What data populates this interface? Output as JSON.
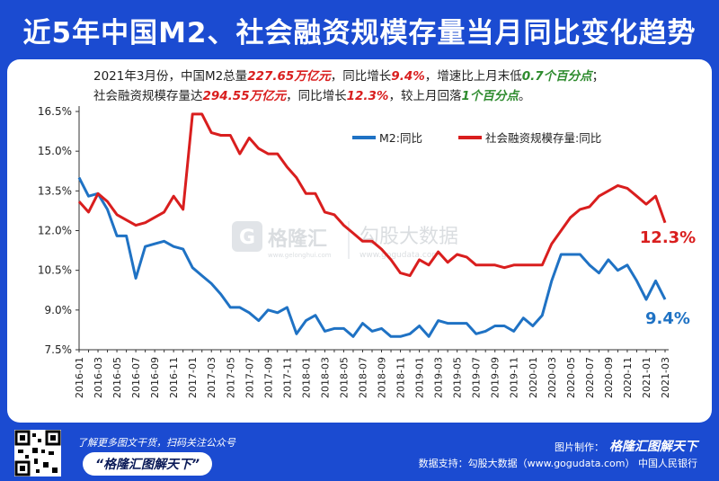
{
  "title": "近5年中国M2、社会融资规模存量当月同比变化趋势",
  "summary": {
    "line1_a": "2021年3月份，中国M2总量",
    "line1_b": "227.65万亿元",
    "line1_c": "，同比增长",
    "line1_d": "9.4%",
    "line1_e": "，增速比上月末低",
    "line1_f": "0.7个百分点",
    "line1_g": "；",
    "line2_a": "社会融资规模存量达",
    "line2_b": "294.55万亿元",
    "line2_c": "，同比增长",
    "line2_d": "12.3%",
    "line2_e": "，较上月回落",
    "line2_f": "1个百分点",
    "line2_g": "。"
  },
  "watermark": {
    "brand": "格隆汇",
    "brand_url": "www.gelonghui.com",
    "brand2": "勾股大数据",
    "brand2_url": "www.gogudata.com"
  },
  "footer": {
    "note": "了解更多图文干货，扫码关注公众号",
    "brand": "“格隆汇图解天下”",
    "maker_label": "图片制作：",
    "maker": "格隆汇图解天下",
    "source": "数据支持：勾股大数据（www.gogudata.com） 中国人民银行"
  },
  "colors": {
    "background": "#1b4bd1",
    "m2": "#1f72c4",
    "social": "#d91e1e"
  },
  "chart_data": {
    "type": "line",
    "ylim": [
      7.5,
      16.5
    ],
    "yticks": [
      "16.5%",
      "15.0%",
      "13.5%",
      "12.0%",
      "10.5%",
      "9.0%",
      "7.5%"
    ],
    "ytick_values": [
      16.5,
      15.0,
      13.5,
      12.0,
      10.5,
      9.0,
      7.5
    ],
    "grid": false,
    "legend_position": "top-right",
    "x": [
      "2016-01",
      "2016-02",
      "2016-03",
      "2016-04",
      "2016-05",
      "2016-06",
      "2016-07",
      "2016-08",
      "2016-09",
      "2016-10",
      "2016-11",
      "2016-12",
      "2017-01",
      "2017-02",
      "2017-03",
      "2017-04",
      "2017-05",
      "2017-06",
      "2017-07",
      "2017-08",
      "2017-09",
      "2017-10",
      "2017-11",
      "2017-12",
      "2018-01",
      "2018-02",
      "2018-03",
      "2018-04",
      "2018-05",
      "2018-06",
      "2018-07",
      "2018-08",
      "2018-09",
      "2018-10",
      "2018-11",
      "2018-12",
      "2019-01",
      "2019-02",
      "2019-03",
      "2019-04",
      "2019-05",
      "2019-06",
      "2019-07",
      "2019-08",
      "2019-09",
      "2019-10",
      "2019-11",
      "2019-12",
      "2020-01",
      "2020-02",
      "2020-03",
      "2020-04",
      "2020-05",
      "2020-06",
      "2020-07",
      "2020-08",
      "2020-09",
      "2020-10",
      "2020-11",
      "2020-12",
      "2021-01",
      "2021-02",
      "2021-03"
    ],
    "xtick_labels": [
      "2016-01",
      "2016-03",
      "2016-05",
      "2016-07",
      "2016-09",
      "2016-11",
      "2017-01",
      "2017-03",
      "2017-05",
      "2017-07",
      "2017-09",
      "2017-11",
      "2018-01",
      "2018-03",
      "2018-05",
      "2018-07",
      "2018-09",
      "2018-11",
      "2019-01",
      "2019-03",
      "2019-05",
      "2019-07",
      "2019-09",
      "2019-11",
      "2020-01",
      "2020-03",
      "2020-05",
      "2020-07",
      "2020-09",
      "2020-11",
      "2021-01",
      "2021-03"
    ],
    "series": [
      {
        "name": "M2:同比",
        "color": "#1f72c4",
        "end_label": "9.4%",
        "values": [
          14.0,
          13.3,
          13.4,
          12.8,
          11.8,
          11.8,
          10.2,
          11.4,
          11.5,
          11.6,
          11.4,
          11.3,
          10.6,
          10.3,
          10.0,
          9.6,
          9.1,
          9.1,
          8.9,
          8.6,
          9.0,
          8.9,
          9.1,
          8.1,
          8.6,
          8.8,
          8.2,
          8.3,
          8.3,
          8.0,
          8.5,
          8.2,
          8.3,
          8.0,
          8.0,
          8.1,
          8.4,
          8.0,
          8.6,
          8.5,
          8.5,
          8.5,
          8.1,
          8.2,
          8.4,
          8.4,
          8.2,
          8.7,
          8.4,
          8.8,
          10.1,
          11.1,
          11.1,
          11.1,
          10.7,
          10.4,
          10.9,
          10.5,
          10.7,
          10.1,
          9.4,
          10.1,
          9.4
        ]
      },
      {
        "name": "社会融资规模存量:同比",
        "color": "#d91e1e",
        "end_label": "12.3%",
        "values": [
          13.1,
          12.7,
          13.4,
          13.1,
          12.6,
          12.4,
          12.2,
          12.3,
          12.5,
          12.7,
          13.3,
          12.8,
          16.4,
          16.4,
          15.7,
          15.6,
          15.6,
          14.9,
          15.5,
          15.1,
          14.9,
          14.9,
          14.4,
          14.0,
          13.4,
          13.4,
          12.7,
          12.6,
          12.2,
          11.9,
          11.6,
          11.6,
          11.3,
          10.9,
          10.4,
          10.3,
          10.9,
          10.7,
          11.2,
          10.8,
          11.1,
          11.0,
          10.7,
          10.7,
          10.7,
          10.6,
          10.7,
          10.7,
          10.7,
          10.7,
          11.5,
          12.0,
          12.5,
          12.8,
          12.9,
          13.3,
          13.5,
          13.7,
          13.6,
          13.3,
          13.0,
          13.3,
          12.3
        ]
      }
    ]
  }
}
